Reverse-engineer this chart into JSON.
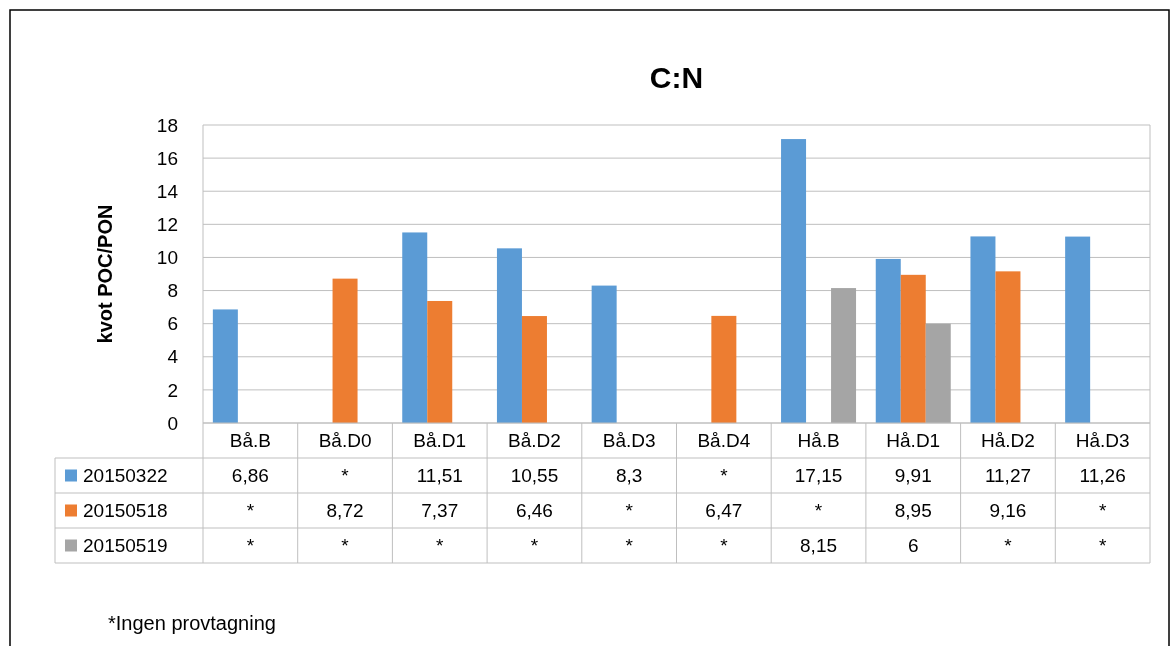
{
  "chart_data": {
    "type": "bar",
    "title": "C:N",
    "ylabel": "kvot POC/PON",
    "categories": [
      "Bå.B",
      "Bå.D0",
      "Bå.D1",
      "Bå.D2",
      "Bå.D3",
      "Bå.D4",
      "Hå.B",
      "Hå.D1",
      "Hå.D2",
      "Hå.D3"
    ],
    "series": [
      {
        "name": "20150322",
        "color": "#5b9bd5",
        "values": [
          6.86,
          null,
          11.51,
          10.55,
          8.3,
          null,
          17.15,
          9.91,
          11.27,
          11.26
        ],
        "value_labels": [
          "6,86",
          "*",
          "11,51",
          "10,55",
          "8,3",
          "*",
          "17,15",
          "9,91",
          "11,27",
          "11,26"
        ]
      },
      {
        "name": "20150518",
        "color": "#ed7d31",
        "values": [
          null,
          8.72,
          7.37,
          6.46,
          null,
          6.47,
          null,
          8.95,
          9.16,
          null
        ],
        "value_labels": [
          "*",
          "8,72",
          "7,37",
          "6,46",
          "*",
          "6,47",
          "*",
          "8,95",
          "9,16",
          "*"
        ]
      },
      {
        "name": "20150519",
        "color": "#a5a5a5",
        "values": [
          null,
          null,
          null,
          null,
          null,
          null,
          8.15,
          6,
          null,
          null
        ],
        "value_labels": [
          "*",
          "*",
          "*",
          "*",
          "*",
          "*",
          "8,15",
          "6",
          "*",
          "*"
        ]
      }
    ],
    "ylim": [
      0,
      18
    ],
    "yticks": [
      0,
      2,
      4,
      6,
      8,
      10,
      12,
      14,
      16,
      18
    ],
    "grid": "y",
    "legend": "bottom",
    "annotations": [
      "*Ingen provtagning"
    ]
  }
}
